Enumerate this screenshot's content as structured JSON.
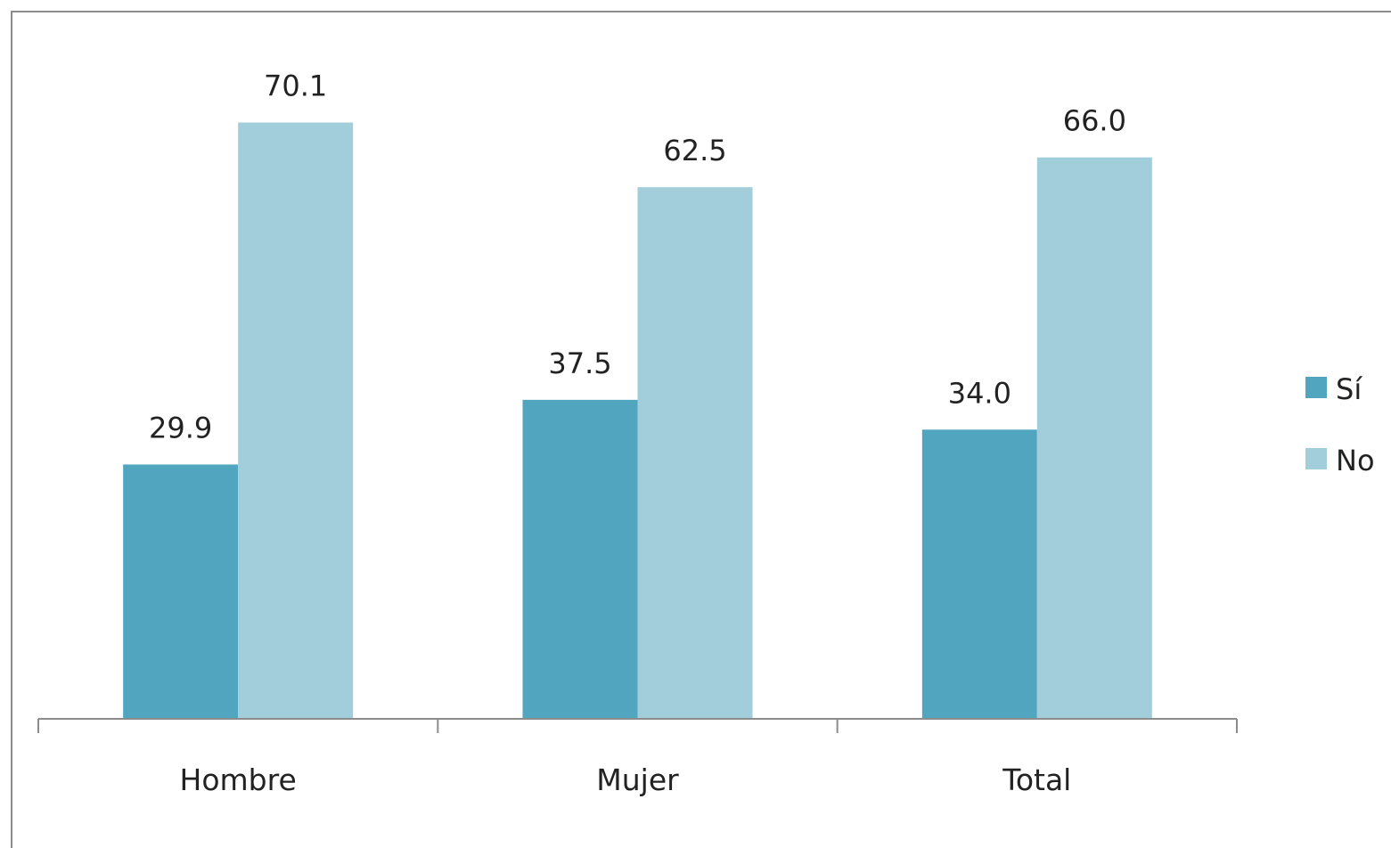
{
  "chart_data": {
    "type": "bar",
    "categories": [
      "Hombre",
      "Mujer",
      "Total"
    ],
    "series": [
      {
        "name": "Sí",
        "values": [
          29.9,
          37.5,
          34.0
        ],
        "labels": [
          "29.9",
          "37.5",
          "34.0"
        ],
        "color": "#52a5bf"
      },
      {
        "name": "No",
        "values": [
          70.1,
          62.5,
          66.0
        ],
        "labels": [
          "70.1",
          "62.5",
          "66.0"
        ],
        "color": "#a2cedb"
      }
    ],
    "title": "",
    "xlabel": "",
    "ylabel": "",
    "ylim": [
      0,
      70.1
    ],
    "grid": false,
    "legend": "right"
  }
}
